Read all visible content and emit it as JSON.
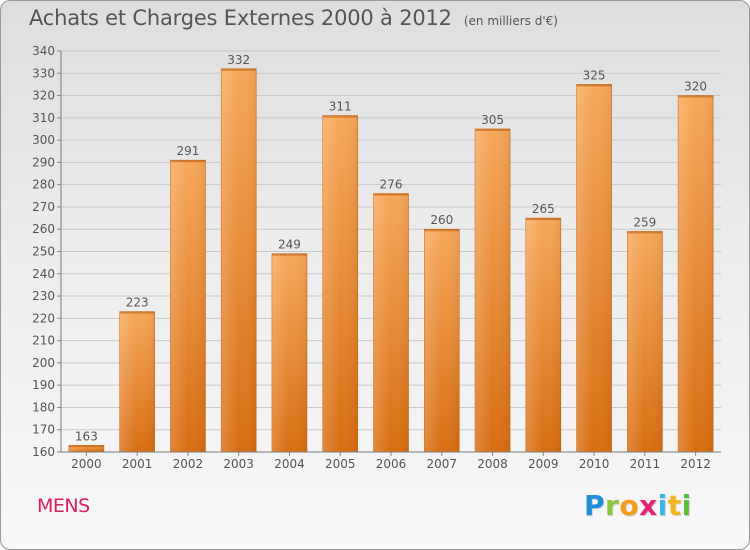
{
  "title": "Achats et Charges Externes 2000 à 2012",
  "unit": "(en milliers d'€)",
  "commune": "MENS",
  "logo": {
    "letters": [
      "P",
      "r",
      "o",
      "x",
      "i",
      "t",
      "i"
    ],
    "colors": [
      "#1f8fd6",
      "#8cc63e",
      "#f59d1b",
      "#e3247a",
      "#3ab6e6",
      "#f4b41a",
      "#5cbf3a"
    ]
  },
  "colors": {
    "bar_light": "#f7a85a",
    "bar_dark": "#d96e12",
    "grid": "#c9c9c9",
    "text": "#555555",
    "commune": "#d8205c"
  },
  "chart_data": {
    "type": "bar",
    "title": "Achats et Charges Externes 2000 à 2012",
    "subtitle": "(en milliers d'€)",
    "xlabel": "",
    "ylabel": "",
    "categories": [
      "2000",
      "2001",
      "2002",
      "2003",
      "2004",
      "2005",
      "2006",
      "2007",
      "2008",
      "2009",
      "2010",
      "2011",
      "2012"
    ],
    "values": [
      163,
      223,
      291,
      332,
      249,
      311,
      276,
      260,
      305,
      265,
      325,
      259,
      320
    ],
    "ylim": [
      160,
      340
    ],
    "ytick_step": 10,
    "grid": true
  }
}
